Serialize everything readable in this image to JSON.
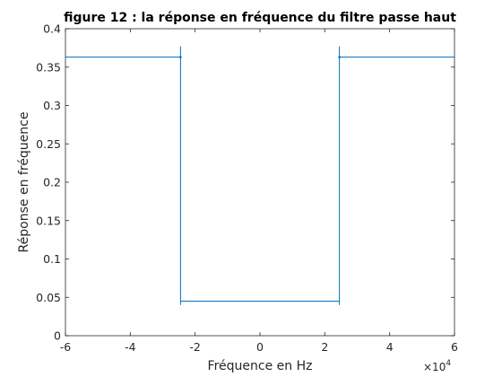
{
  "colors": {
    "series": "#0072BD",
    "axis": "#262626",
    "background": "#ffffff"
  },
  "chart_data": {
    "type": "line",
    "title": "figure 12 : la réponse en fréquence du filtre passe haut",
    "xlabel": "Fréquence en Hz",
    "ylabel": "Réponse en fréquence",
    "x_multiplier_label": "×10",
    "x_multiplier_exponent": "4",
    "xlim": [
      -60000,
      60000
    ],
    "ylim": [
      0,
      0.4
    ],
    "xticks": [
      -60000,
      -40000,
      -20000,
      0,
      20000,
      40000,
      60000
    ],
    "xtick_labels": [
      "-6",
      "-4",
      "-2",
      "0",
      "2",
      "4",
      "6"
    ],
    "yticks": [
      0,
      0.05,
      0.1,
      0.15,
      0.2,
      0.25,
      0.3,
      0.35,
      0.4
    ],
    "ytick_labels": [
      "0",
      "0.05",
      "0.1",
      "0.15",
      "0.2",
      "0.25",
      "0.3",
      "0.35",
      "0.4"
    ],
    "grid": false,
    "series": [
      {
        "x": [
          -60000,
          -24500,
          -24500,
          -24500,
          -24500,
          24500,
          24500,
          24500,
          24500,
          60000
        ],
        "y": [
          0.363,
          0.363,
          0.377,
          0.04,
          0.045,
          0.045,
          0.04,
          0.377,
          0.363,
          0.363
        ]
      }
    ]
  }
}
